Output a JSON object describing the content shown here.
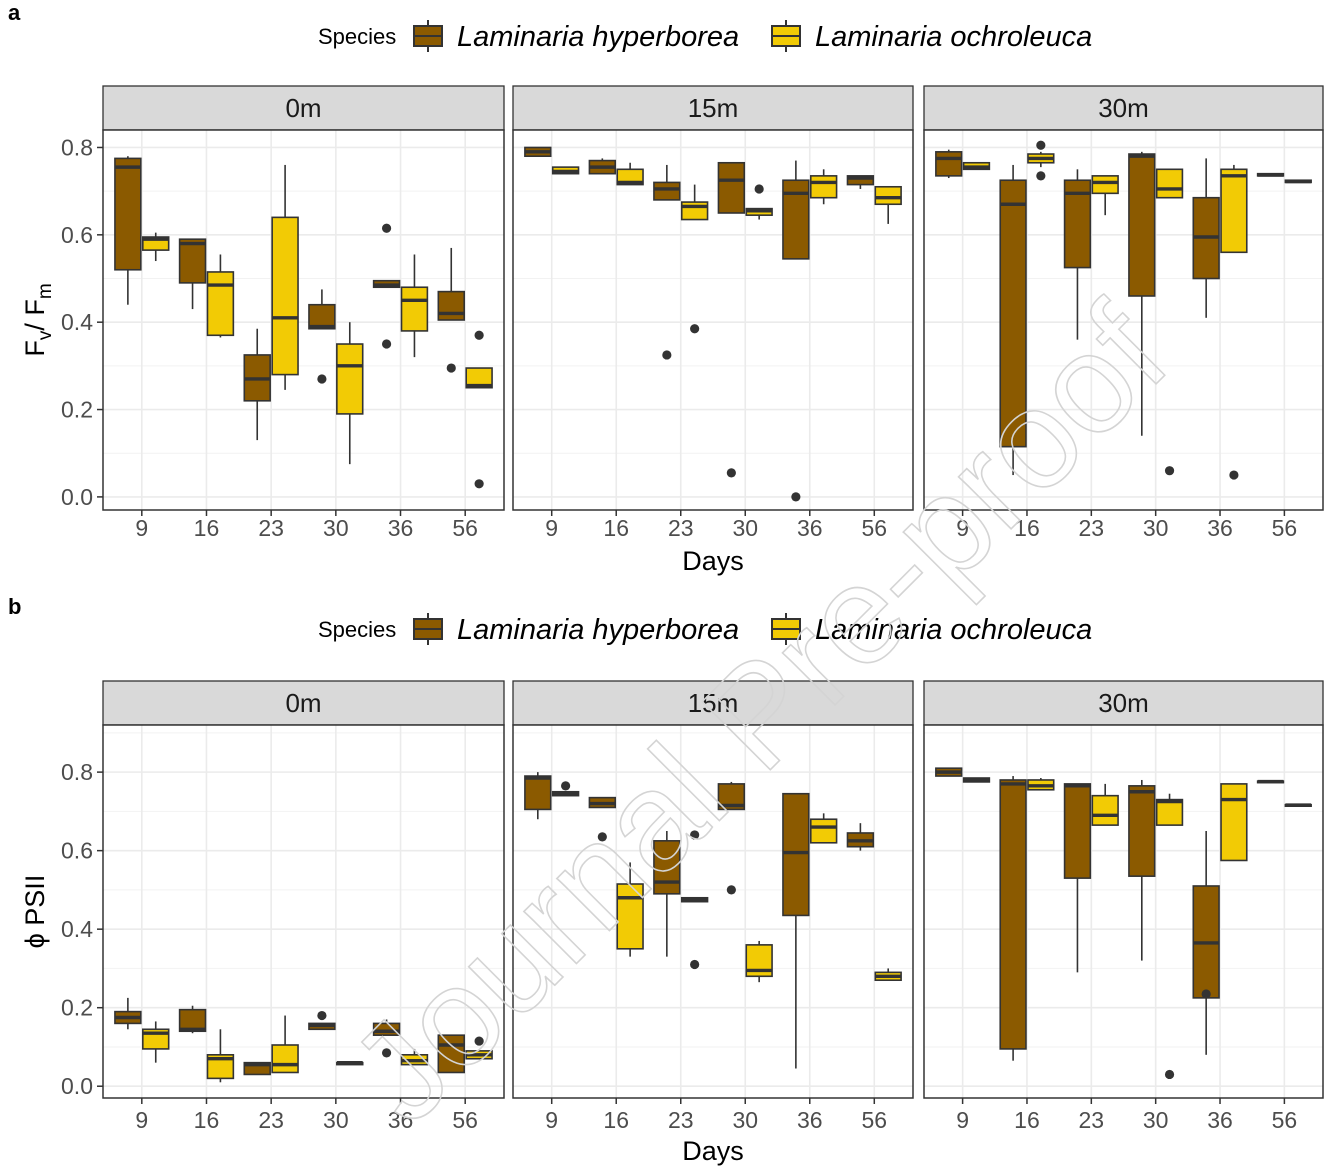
{
  "figure": {
    "watermark": "Journal Pre-proof",
    "colors": {
      "hyperborea": "#8B5A00",
      "ochroleuca": "#F2CB05",
      "outline": "#333333",
      "strip_fill": "#D9D9D9",
      "grid": "#EBEBEB"
    }
  },
  "chart_data": [
    {
      "panel_label": "a",
      "type": "boxplot",
      "legend": {
        "title": "Species",
        "entries": [
          "Laminaria hyperborea",
          "Laminaria ochroleuca"
        ]
      },
      "facets": [
        "0m",
        "15m",
        "30m"
      ],
      "categories": [
        "9",
        "16",
        "23",
        "30",
        "36",
        "56"
      ],
      "xlabel": "Days",
      "ylabel": {
        "main": "F",
        "sub1": "v",
        "mid": "/ F",
        "sub2": "m"
      },
      "ylim": [
        -0.03,
        0.84
      ],
      "yticks": [
        0.0,
        0.2,
        0.4,
        0.6,
        0.8
      ],
      "ytick_labels": [
        "0.0",
        "0.2",
        "0.4",
        "0.6",
        "0.8"
      ],
      "grid": true,
      "series": [
        {
          "name": "Laminaria hyperborea",
          "facets": {
            "0m": [
              {
                "min": 0.44,
                "q1": 0.52,
                "median": 0.755,
                "q3": 0.775,
                "max": 0.78,
                "outliers": []
              },
              {
                "min": 0.43,
                "q1": 0.49,
                "median": 0.58,
                "q3": 0.59,
                "max": 0.59,
                "outliers": []
              },
              {
                "min": 0.13,
                "q1": 0.22,
                "median": 0.27,
                "q3": 0.325,
                "max": 0.385,
                "outliers": []
              },
              {
                "min": 0.385,
                "q1": 0.385,
                "median": 0.39,
                "q3": 0.44,
                "max": 0.475,
                "outliers": [
                  0.27
                ]
              },
              {
                "min": 0.48,
                "q1": 0.48,
                "median": 0.485,
                "q3": 0.495,
                "max": 0.495,
                "outliers": [
                  0.615,
                  0.35
                ]
              },
              {
                "min": 0.405,
                "q1": 0.405,
                "median": 0.42,
                "q3": 0.47,
                "max": 0.57,
                "outliers": [
                  0.295
                ]
              }
            ],
            "15m": [
              {
                "min": 0.78,
                "q1": 0.78,
                "median": 0.79,
                "q3": 0.8,
                "max": 0.8,
                "outliers": []
              },
              {
                "min": 0.74,
                "q1": 0.74,
                "median": 0.755,
                "q3": 0.77,
                "max": 0.775,
                "outliers": []
              },
              {
                "min": 0.68,
                "q1": 0.68,
                "median": 0.705,
                "q3": 0.72,
                "max": 0.76,
                "outliers": [
                  0.325
                ]
              },
              {
                "min": 0.65,
                "q1": 0.65,
                "median": 0.725,
                "q3": 0.765,
                "max": 0.765,
                "outliers": [
                  0.055
                ]
              },
              {
                "min": 0.545,
                "q1": 0.545,
                "median": 0.695,
                "q3": 0.725,
                "max": 0.77,
                "outliers": [
                  0.0
                ]
              },
              {
                "min": 0.705,
                "q1": 0.715,
                "median": 0.73,
                "q3": 0.735,
                "max": 0.735,
                "outliers": []
              }
            ],
            "30m": [
              {
                "min": 0.73,
                "q1": 0.735,
                "median": 0.775,
                "q3": 0.79,
                "max": 0.795,
                "outliers": []
              },
              {
                "min": 0.05,
                "q1": 0.115,
                "median": 0.67,
                "q3": 0.725,
                "max": 0.76,
                "outliers": []
              },
              {
                "min": 0.36,
                "q1": 0.525,
                "median": 0.695,
                "q3": 0.725,
                "max": 0.75,
                "outliers": []
              },
              {
                "min": 0.14,
                "q1": 0.46,
                "median": 0.78,
                "q3": 0.785,
                "max": 0.79,
                "outliers": []
              },
              {
                "min": 0.41,
                "q1": 0.5,
                "median": 0.595,
                "q3": 0.685,
                "max": 0.775,
                "outliers": []
              },
              {
                "min": 0.735,
                "q1": 0.735,
                "median": 0.737,
                "q3": 0.74,
                "max": 0.74,
                "outliers": []
              }
            ]
          }
        },
        {
          "name": "Laminaria ochroleuca",
          "facets": {
            "0m": [
              {
                "min": 0.54,
                "q1": 0.565,
                "median": 0.59,
                "q3": 0.595,
                "max": 0.605,
                "outliers": []
              },
              {
                "min": 0.365,
                "q1": 0.37,
                "median": 0.485,
                "q3": 0.515,
                "max": 0.555,
                "outliers": []
              },
              {
                "min": 0.245,
                "q1": 0.28,
                "median": 0.41,
                "q3": 0.64,
                "max": 0.76,
                "outliers": []
              },
              {
                "min": 0.075,
                "q1": 0.19,
                "median": 0.3,
                "q3": 0.35,
                "max": 0.4,
                "outliers": []
              },
              {
                "min": 0.32,
                "q1": 0.38,
                "median": 0.45,
                "q3": 0.48,
                "max": 0.555,
                "outliers": []
              },
              {
                "min": 0.25,
                "q1": 0.25,
                "median": 0.255,
                "q3": 0.295,
                "max": 0.295,
                "outliers": [
                  0.37,
                  0.03
                ]
              }
            ],
            "15m": [
              {
                "min": 0.74,
                "q1": 0.74,
                "median": 0.745,
                "q3": 0.755,
                "max": 0.755,
                "outliers": []
              },
              {
                "min": 0.715,
                "q1": 0.715,
                "median": 0.72,
                "q3": 0.75,
                "max": 0.765,
                "outliers": []
              },
              {
                "min": 0.635,
                "q1": 0.635,
                "median": 0.665,
                "q3": 0.675,
                "max": 0.715,
                "outliers": [
                  0.385
                ]
              },
              {
                "min": 0.635,
                "q1": 0.645,
                "median": 0.655,
                "q3": 0.66,
                "max": 0.66,
                "outliers": [
                  0.705
                ]
              },
              {
                "min": 0.67,
                "q1": 0.685,
                "median": 0.72,
                "q3": 0.735,
                "max": 0.75,
                "outliers": []
              },
              {
                "min": 0.625,
                "q1": 0.67,
                "median": 0.685,
                "q3": 0.71,
                "max": 0.71,
                "outliers": []
              }
            ],
            "30m": [
              {
                "min": 0.75,
                "q1": 0.75,
                "median": 0.755,
                "q3": 0.765,
                "max": 0.765,
                "outliers": []
              },
              {
                "min": 0.755,
                "q1": 0.765,
                "median": 0.775,
                "q3": 0.785,
                "max": 0.79,
                "outliers": [
                  0.805,
                  0.735
                ]
              },
              {
                "min": 0.645,
                "q1": 0.695,
                "median": 0.72,
                "q3": 0.735,
                "max": 0.735,
                "outliers": []
              },
              {
                "min": 0.685,
                "q1": 0.685,
                "median": 0.705,
                "q3": 0.75,
                "max": 0.75,
                "outliers": [
                  0.06
                ]
              },
              {
                "min": 0.56,
                "q1": 0.56,
                "median": 0.735,
                "q3": 0.75,
                "max": 0.76,
                "outliers": [
                  0.05
                ]
              },
              {
                "min": 0.72,
                "q1": 0.72,
                "median": 0.722,
                "q3": 0.725,
                "max": 0.725,
                "outliers": []
              }
            ]
          }
        }
      ]
    },
    {
      "panel_label": "b",
      "type": "boxplot",
      "legend": {
        "title": "Species",
        "entries": [
          "Laminaria hyperborea",
          "Laminaria ochroleuca"
        ]
      },
      "facets": [
        "0m",
        "15m",
        "30m"
      ],
      "categories": [
        "9",
        "16",
        "23",
        "30",
        "36",
        "56"
      ],
      "xlabel": "Days",
      "ylabel": {
        "main": "ϕ PSII"
      },
      "ylim": [
        -0.03,
        0.92
      ],
      "yticks": [
        0.0,
        0.2,
        0.4,
        0.6,
        0.8
      ],
      "ytick_labels": [
        "0.0",
        "0.2",
        "0.4",
        "0.6",
        "0.8"
      ],
      "grid": true,
      "series": [
        {
          "name": "Laminaria hyperborea",
          "facets": {
            "0m": [
              {
                "min": 0.145,
                "q1": 0.16,
                "median": 0.175,
                "q3": 0.19,
                "max": 0.225,
                "outliers": []
              },
              {
                "min": 0.135,
                "q1": 0.14,
                "median": 0.145,
                "q3": 0.195,
                "max": 0.205,
                "outliers": []
              },
              {
                "min": 0.03,
                "q1": 0.03,
                "median": 0.055,
                "q3": 0.06,
                "max": 0.06,
                "outliers": []
              },
              {
                "min": 0.145,
                "q1": 0.145,
                "median": 0.155,
                "q3": 0.16,
                "max": 0.16,
                "outliers": [
                  0.18
                ]
              },
              {
                "min": 0.13,
                "q1": 0.13,
                "median": 0.14,
                "q3": 0.16,
                "max": 0.17,
                "outliers": [
                  0.085
                ]
              },
              {
                "min": 0.035,
                "q1": 0.035,
                "median": 0.105,
                "q3": 0.13,
                "max": 0.13,
                "outliers": []
              }
            ],
            "15m": [
              {
                "min": 0.68,
                "q1": 0.705,
                "median": 0.785,
                "q3": 0.79,
                "max": 0.8,
                "outliers": []
              },
              {
                "min": 0.71,
                "q1": 0.71,
                "median": 0.72,
                "q3": 0.735,
                "max": 0.735,
                "outliers": [
                  0.635
                ]
              },
              {
                "min": 0.33,
                "q1": 0.49,
                "median": 0.52,
                "q3": 0.625,
                "max": 0.65,
                "outliers": []
              },
              {
                "min": 0.705,
                "q1": 0.705,
                "median": 0.715,
                "q3": 0.77,
                "max": 0.775,
                "outliers": [
                  0.5
                ]
              },
              {
                "min": 0.045,
                "q1": 0.435,
                "median": 0.595,
                "q3": 0.745,
                "max": 0.745,
                "outliers": []
              },
              {
                "min": 0.6,
                "q1": 0.61,
                "median": 0.625,
                "q3": 0.645,
                "max": 0.67,
                "outliers": []
              }
            ],
            "30m": [
              {
                "min": 0.79,
                "q1": 0.79,
                "median": 0.8,
                "q3": 0.81,
                "max": 0.81,
                "outliers": []
              },
              {
                "min": 0.065,
                "q1": 0.095,
                "median": 0.77,
                "q3": 0.78,
                "max": 0.79,
                "outliers": []
              },
              {
                "min": 0.29,
                "q1": 0.53,
                "median": 0.765,
                "q3": 0.77,
                "max": 0.77,
                "outliers": []
              },
              {
                "min": 0.32,
                "q1": 0.535,
                "median": 0.75,
                "q3": 0.765,
                "max": 0.78,
                "outliers": []
              },
              {
                "min": 0.08,
                "q1": 0.225,
                "median": 0.365,
                "q3": 0.51,
                "max": 0.65,
                "outliers": [
                  0.235
                ]
              },
              {
                "min": 0.775,
                "q1": 0.775,
                "median": 0.776,
                "q3": 0.777,
                "max": 0.777,
                "outliers": []
              }
            ]
          }
        },
        {
          "name": "Laminaria ochroleuca",
          "facets": {
            "0m": [
              {
                "min": 0.06,
                "q1": 0.095,
                "median": 0.135,
                "q3": 0.145,
                "max": 0.165,
                "outliers": []
              },
              {
                "min": 0.01,
                "q1": 0.02,
                "median": 0.07,
                "q3": 0.08,
                "max": 0.145,
                "outliers": []
              },
              {
                "min": 0.035,
                "q1": 0.035,
                "median": 0.055,
                "q3": 0.105,
                "max": 0.18,
                "outliers": []
              },
              {
                "min": 0.055,
                "q1": 0.055,
                "median": 0.06,
                "q3": 0.06,
                "max": 0.06,
                "outliers": []
              },
              {
                "min": 0.055,
                "q1": 0.055,
                "median": 0.065,
                "q3": 0.08,
                "max": 0.095,
                "outliers": []
              },
              {
                "min": 0.07,
                "q1": 0.07,
                "median": 0.08,
                "q3": 0.09,
                "max": 0.09,
                "outliers": [
                  0.115
                ]
              }
            ],
            "15m": [
              {
                "min": 0.74,
                "q1": 0.74,
                "median": 0.745,
                "q3": 0.75,
                "max": 0.75,
                "outliers": [
                  0.765
                ]
              },
              {
                "min": 0.33,
                "q1": 0.35,
                "median": 0.48,
                "q3": 0.515,
                "max": 0.57,
                "outliers": []
              },
              {
                "min": 0.47,
                "q1": 0.47,
                "median": 0.475,
                "q3": 0.48,
                "max": 0.48,
                "outliers": [
                  0.64,
                  0.31
                ]
              },
              {
                "min": 0.265,
                "q1": 0.28,
                "median": 0.295,
                "q3": 0.36,
                "max": 0.37,
                "outliers": []
              },
              {
                "min": 0.62,
                "q1": 0.62,
                "median": 0.66,
                "q3": 0.68,
                "max": 0.695,
                "outliers": []
              },
              {
                "min": 0.27,
                "q1": 0.27,
                "median": 0.28,
                "q3": 0.29,
                "max": 0.3,
                "outliers": []
              }
            ],
            "30m": [
              {
                "min": 0.775,
                "q1": 0.775,
                "median": 0.78,
                "q3": 0.785,
                "max": 0.785,
                "outliers": []
              },
              {
                "min": 0.755,
                "q1": 0.755,
                "median": 0.765,
                "q3": 0.78,
                "max": 0.785,
                "outliers": []
              },
              {
                "min": 0.665,
                "q1": 0.665,
                "median": 0.69,
                "q3": 0.74,
                "max": 0.77,
                "outliers": []
              },
              {
                "min": 0.665,
                "q1": 0.665,
                "median": 0.725,
                "q3": 0.73,
                "max": 0.745,
                "outliers": [
                  0.03
                ]
              },
              {
                "min": 0.575,
                "q1": 0.575,
                "median": 0.73,
                "q3": 0.77,
                "max": 0.77,
                "outliers": []
              },
              {
                "min": 0.715,
                "q1": 0.715,
                "median": 0.716,
                "q3": 0.717,
                "max": 0.717,
                "outliers": []
              }
            ]
          }
        }
      ]
    }
  ]
}
